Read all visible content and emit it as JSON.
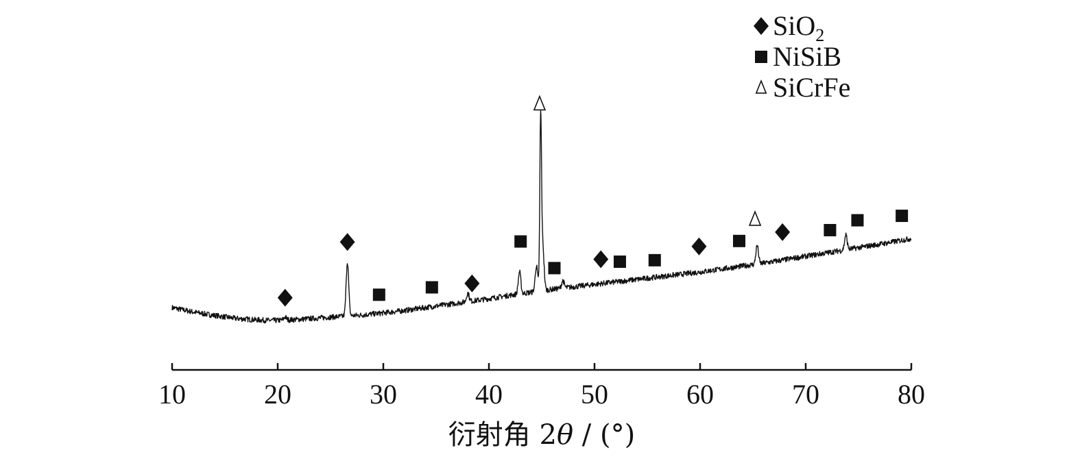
{
  "chart_data": {
    "type": "line",
    "title": "",
    "xlabel_prefix": "衍射角 2",
    "xlabel_symbol": "θ",
    "xlabel_suffix": " / (°)",
    "ylabel": "",
    "xlim": [
      10,
      80
    ],
    "x_ticks": [
      "10",
      "20",
      "30",
      "40",
      "50",
      "60",
      "70",
      "80"
    ],
    "grid": false,
    "legend": {
      "placement": "top-right",
      "entries": [
        {
          "marker": "diamond",
          "label": "SiO",
          "subscript": "2"
        },
        {
          "marker": "square",
          "label": "NiSiB",
          "subscript": ""
        },
        {
          "marker": "triangle-open",
          "label": "SiCrFe",
          "subscript": ""
        }
      ]
    },
    "series": [
      {
        "x": [
          10,
          12,
          14,
          16,
          18,
          19,
          20,
          21,
          22,
          24,
          26,
          28,
          30,
          32,
          34,
          36,
          38,
          40,
          42,
          44,
          46,
          48,
          50,
          52,
          54,
          56,
          58,
          60,
          62,
          64,
          66,
          68,
          70,
          72,
          74,
          76,
          78,
          80
        ],
        "y": [
          0.5,
          0.41,
          0.34,
          0.28,
          0.25,
          0.24,
          0.24,
          0.25,
          0.26,
          0.29,
          0.32,
          0.35,
          0.39,
          0.44,
          0.5,
          0.56,
          0.62,
          0.68,
          0.75,
          0.81,
          0.87,
          0.92,
          0.97,
          1.02,
          1.07,
          1.12,
          1.17,
          1.22,
          1.28,
          1.34,
          1.4,
          1.47,
          1.54,
          1.61,
          1.68,
          1.75,
          1.82,
          1.9
        ],
        "peaks": [
          {
            "x": 20.7,
            "height": 0.06
          },
          {
            "x": 26.6,
            "height": 1.1
          },
          {
            "x": 38.0,
            "height": 0.18
          },
          {
            "x": 42.9,
            "height": 0.45
          },
          {
            "x": 44.5,
            "height": 0.52
          },
          {
            "x": 44.9,
            "height": 3.45
          },
          {
            "x": 45.1,
            "height": 0.9
          },
          {
            "x": 47.0,
            "height": 0.15
          },
          {
            "x": 65.4,
            "height": 0.38
          },
          {
            "x": 73.8,
            "height": 0.3
          }
        ],
        "noise": 0.055
      }
    ],
    "annotations": [
      {
        "marker": "diamond",
        "x": 20.7,
        "y": 0.7
      },
      {
        "marker": "diamond",
        "x": 26.6,
        "y": 1.83
      },
      {
        "marker": "diamond",
        "x": 38.4,
        "y": 0.99
      },
      {
        "marker": "diamond",
        "x": 50.6,
        "y": 1.48
      },
      {
        "marker": "diamond",
        "x": 59.9,
        "y": 1.74
      },
      {
        "marker": "diamond",
        "x": 67.8,
        "y": 2.03
      },
      {
        "marker": "square",
        "x": 29.6,
        "y": 0.76
      },
      {
        "marker": "square",
        "x": 34.6,
        "y": 0.91
      },
      {
        "marker": "square",
        "x": 43.0,
        "y": 1.84
      },
      {
        "marker": "square",
        "x": 46.2,
        "y": 1.3
      },
      {
        "marker": "square",
        "x": 52.4,
        "y": 1.43
      },
      {
        "marker": "square",
        "x": 55.7,
        "y": 1.46
      },
      {
        "marker": "square",
        "x": 63.7,
        "y": 1.85
      },
      {
        "marker": "square",
        "x": 72.3,
        "y": 2.07
      },
      {
        "marker": "square",
        "x": 74.9,
        "y": 2.27
      },
      {
        "marker": "square",
        "x": 79.1,
        "y": 2.36
      },
      {
        "marker": "triangle-open",
        "x": 44.8,
        "y": 4.63
      },
      {
        "marker": "triangle-open",
        "x": 65.2,
        "y": 2.29
      }
    ],
    "colors": {
      "line": "#111111",
      "axis": "#111111",
      "highlight_blue": "#3b4fb8",
      "highlight_red": "#e03030",
      "highlight_green": "#4caf50"
    }
  }
}
